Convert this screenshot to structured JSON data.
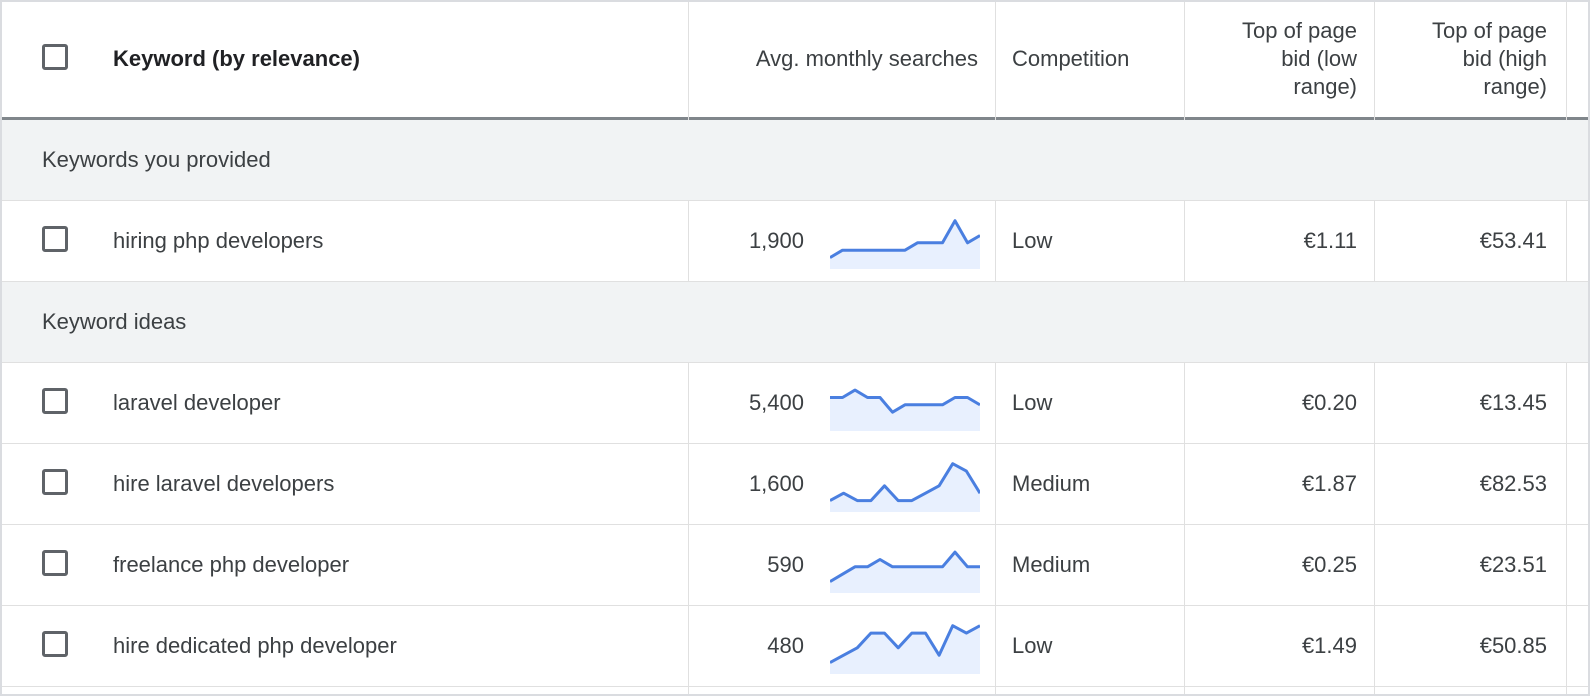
{
  "header": {
    "keyword": "Keyword (by relevance)",
    "searches": "Avg. monthly searches",
    "competition": "Competition",
    "bid_low": [
      "Top of page",
      "bid (low",
      "range)"
    ],
    "bid_high": [
      "Top of page",
      "bid (high",
      "range)"
    ]
  },
  "groups": {
    "provided": "Keywords you provided",
    "ideas": "Keyword ideas"
  },
  "rows": [
    {
      "keyword": "hiring php developers",
      "searches": "1,900",
      "trend": [
        1,
        2,
        2,
        2,
        2,
        2,
        2,
        3,
        3,
        3,
        6,
        3,
        4
      ],
      "competition": "Low",
      "bid_low": "€1.11",
      "bid_high": "€53.41"
    },
    {
      "keyword": "laravel developer",
      "searches": "5,400",
      "trend": [
        4,
        4,
        5,
        4,
        4,
        2,
        3,
        3,
        3,
        3,
        4,
        4,
        3
      ],
      "competition": "Low",
      "bid_low": "€0.20",
      "bid_high": "€13.45"
    },
    {
      "keyword": "hire laravel developers",
      "searches": "1,600",
      "trend": [
        1,
        2,
        1,
        1,
        3,
        1,
        1,
        2,
        3,
        6,
        5,
        2
      ],
      "competition": "Medium",
      "bid_low": "€1.87",
      "bid_high": "€82.53"
    },
    {
      "keyword": "freelance php developer",
      "searches": "590",
      "trend": [
        1,
        2,
        3,
        3,
        4,
        3,
        3,
        3,
        3,
        3,
        5,
        3,
        3
      ],
      "competition": "Medium",
      "bid_low": "€0.25",
      "bid_high": "€23.51"
    },
    {
      "keyword": "hire dedicated php developer",
      "searches": "480",
      "trend": [
        1,
        2,
        3,
        5,
        5,
        3,
        5,
        5,
        2,
        6,
        5,
        6
      ],
      "competition": "Low",
      "bid_low": "€1.49",
      "bid_high": "€50.85"
    }
  ],
  "colors": {
    "accent": "#4a7fe0",
    "fill": "#e8f0fe",
    "group_bg": "#f1f3f4"
  }
}
